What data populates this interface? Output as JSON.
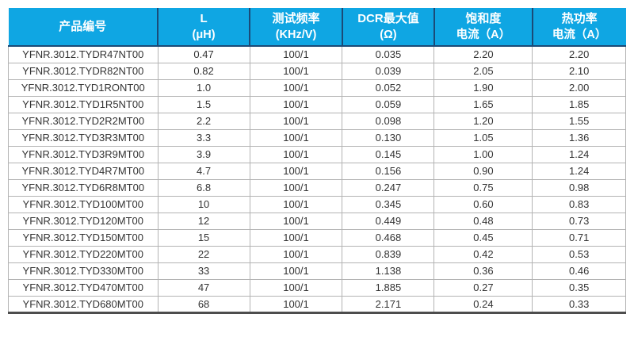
{
  "colors": {
    "header_bg": "#0fa6e3",
    "header_text": "#ffffff",
    "header_divider": "#1b4a77",
    "grid_line": "#b3b3b3",
    "body_text": "#333333",
    "bottom_border": "#4d4d4d",
    "page_bg": "#ffffff"
  },
  "table": {
    "columns": [
      {
        "key": "product-code",
        "line1": "产品编号",
        "line2": ""
      },
      {
        "key": "inductance",
        "line1": "L",
        "line2": "(μH)"
      },
      {
        "key": "test-frequency",
        "line1": "测试频率",
        "line2": "(KHz/V)"
      },
      {
        "key": "dcr-max",
        "line1": "DCR最大值",
        "line2": "(Ω)"
      },
      {
        "key": "saturation-current",
        "line1": "饱和度",
        "line2": "电流（A）"
      },
      {
        "key": "thermal-current",
        "line1": "热功率",
        "line2": "电流（A）"
      }
    ],
    "rows": [
      [
        "YFNR.3012.TYDR47NT00",
        "0.47",
        "100/1",
        "0.035",
        "2.20",
        "2.20"
      ],
      [
        "YFNR.3012.TYDR82NT00",
        "0.82",
        "100/1",
        "0.039",
        "2.05",
        "2.10"
      ],
      [
        "YFNR.3012.TYD1RONT00",
        "1.0",
        "100/1",
        "0.052",
        "1.90",
        "2.00"
      ],
      [
        "YFNR.3012.TYD1R5NT00",
        "1.5",
        "100/1",
        "0.059",
        "1.65",
        "1.85"
      ],
      [
        "YFNR.3012.TYD2R2MT00",
        "2.2",
        "100/1",
        "0.098",
        "1.20",
        "1.55"
      ],
      [
        "YFNR.3012.TYD3R3MT00",
        "3.3",
        "100/1",
        "0.130",
        "1.05",
        "1.36"
      ],
      [
        "YFNR.3012.TYD3R9MT00",
        "3.9",
        "100/1",
        "0.145",
        "1.00",
        "1.24"
      ],
      [
        "YFNR.3012.TYD4R7MT00",
        "4.7",
        "100/1",
        "0.156",
        "0.90",
        "1.24"
      ],
      [
        "YFNR.3012.TYD6R8MT00",
        "6.8",
        "100/1",
        "0.247",
        "0.75",
        "0.98"
      ],
      [
        "YFNR.3012.TYD100MT00",
        "10",
        "100/1",
        "0.345",
        "0.60",
        "0.83"
      ],
      [
        "YFNR.3012.TYD120MT00",
        "12",
        "100/1",
        "0.449",
        "0.48",
        "0.73"
      ],
      [
        "YFNR.3012.TYD150MT00",
        "15",
        "100/1",
        "0.468",
        "0.45",
        "0.71"
      ],
      [
        "YFNR.3012.TYD220MT00",
        "22",
        "100/1",
        "0.839",
        "0.42",
        "0.53"
      ],
      [
        "YFNR.3012.TYD330MT00",
        "33",
        "100/1",
        "1.138",
        "0.36",
        "0.46"
      ],
      [
        "YFNR.3012.TYD470MT00",
        "47",
        "100/1",
        "1.885",
        "0.27",
        "0.35"
      ],
      [
        "YFNR.3012.TYD680MT00",
        "68",
        "100/1",
        "2.171",
        "0.24",
        "0.33"
      ]
    ]
  }
}
